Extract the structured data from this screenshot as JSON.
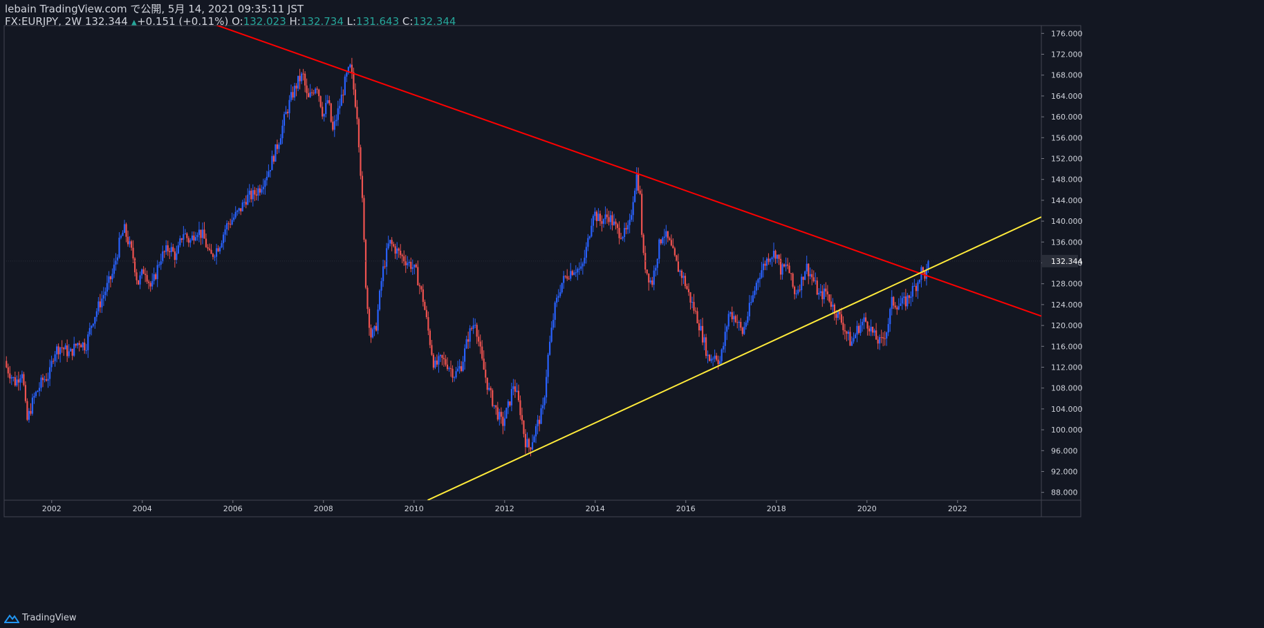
{
  "header": {
    "line1": "lebain TradingView.com で公開, 5月 14, 2021 09:35:11 JST",
    "symbol": "FX:EURJPY, 2W 132.344",
    "change": "+0.151 (+0.11%)",
    "o_label": "O:",
    "o_value": "132.023",
    "h_label": "H:",
    "h_value": "132.734",
    "l_label": "L:",
    "l_value": "131.643",
    "c_label": "C:",
    "c_value": "132.344"
  },
  "footer": {
    "brand": "TradingView",
    "logo_icon": "tradingview-logo-icon"
  },
  "colors": {
    "background": "#131722",
    "up": "#2962ff",
    "down": "#ef5350",
    "resistance": "#ff0000",
    "support": "#ffeb3b",
    "axis_text": "#d1d4dc",
    "price_label_bg": "#2a2e39"
  },
  "chart_data": {
    "type": "candlestick",
    "symbol": "FX:EURJPY",
    "interval": "2W",
    "x_range": [
      2000.95,
      2023.85
    ],
    "y_range": [
      86.5,
      177.5
    ],
    "x_ticks": [
      "2002",
      "2004",
      "2006",
      "2008",
      "2010",
      "2012",
      "2014",
      "2016",
      "2018",
      "2020",
      "2022"
    ],
    "y_ticks": [
      "88.000",
      "92.000",
      "96.000",
      "100.000",
      "104.000",
      "108.000",
      "112.000",
      "116.000",
      "120.000",
      "124.000",
      "128.000",
      "132.000",
      "136.000",
      "140.000",
      "144.000",
      "148.000",
      "152.000",
      "156.000",
      "160.000",
      "164.000",
      "168.000",
      "172.000",
      "176.000"
    ],
    "last_price": 132.344,
    "last_price_label": "132.344",
    "close_path": [
      [
        2001.0,
        112.0
      ],
      [
        2001.2,
        109.0
      ],
      [
        2001.35,
        111.5
      ],
      [
        2001.45,
        101.5
      ],
      [
        2001.6,
        106.0
      ],
      [
        2001.8,
        109.5
      ],
      [
        2001.95,
        110.5
      ],
      [
        2002.05,
        115.0
      ],
      [
        2002.2,
        116.0
      ],
      [
        2002.4,
        114.5
      ],
      [
        2002.6,
        117.0
      ],
      [
        2002.75,
        116.0
      ],
      [
        2002.9,
        121.0
      ],
      [
        2003.0,
        123.0
      ],
      [
        2003.2,
        127.0
      ],
      [
        2003.35,
        130.0
      ],
      [
        2003.5,
        136.0
      ],
      [
        2003.6,
        138.5
      ],
      [
        2003.8,
        133.0
      ],
      [
        2003.9,
        128.0
      ],
      [
        2004.05,
        131.0
      ],
      [
        2004.2,
        127.0
      ],
      [
        2004.4,
        133.0
      ],
      [
        2004.6,
        135.0
      ],
      [
        2004.75,
        133.0
      ],
      [
        2004.9,
        138.0
      ],
      [
        2005.05,
        136.0
      ],
      [
        2005.2,
        138.5
      ],
      [
        2005.35,
        137.0
      ],
      [
        2005.5,
        133.0
      ],
      [
        2005.7,
        135.5
      ],
      [
        2005.85,
        139.0
      ],
      [
        2006.0,
        140.5
      ],
      [
        2006.15,
        142.0
      ],
      [
        2006.3,
        144.5
      ],
      [
        2006.45,
        145.0
      ],
      [
        2006.6,
        146.5
      ],
      [
        2006.8,
        150.0
      ],
      [
        2007.0,
        155.0
      ],
      [
        2007.15,
        160.0
      ],
      [
        2007.3,
        164.0
      ],
      [
        2007.45,
        167.0
      ],
      [
        2007.55,
        168.0
      ],
      [
        2007.65,
        163.0
      ],
      [
        2007.85,
        166.5
      ],
      [
        2008.0,
        160.0
      ],
      [
        2008.1,
        163.5
      ],
      [
        2008.2,
        157.0
      ],
      [
        2008.35,
        162.0
      ],
      [
        2008.5,
        167.5
      ],
      [
        2008.6,
        169.5
      ],
      [
        2008.75,
        160.0
      ],
      [
        2008.85,
        145.0
      ],
      [
        2008.95,
        125.0
      ],
      [
        2009.05,
        118.0
      ],
      [
        2009.15,
        119.0
      ],
      [
        2009.3,
        130.0
      ],
      [
        2009.45,
        136.0
      ],
      [
        2009.6,
        134.5
      ],
      [
        2009.75,
        133.0
      ],
      [
        2009.95,
        131.5
      ],
      [
        2010.05,
        130.0
      ],
      [
        2010.2,
        125.0
      ],
      [
        2010.35,
        117.0
      ],
      [
        2010.45,
        112.0
      ],
      [
        2010.6,
        113.5
      ],
      [
        2010.75,
        112.5
      ],
      [
        2010.9,
        110.5
      ],
      [
        2011.05,
        112.5
      ],
      [
        2011.2,
        118.0
      ],
      [
        2011.35,
        121.0
      ],
      [
        2011.5,
        113.0
      ],
      [
        2011.65,
        107.5
      ],
      [
        2011.8,
        104.0
      ],
      [
        2011.95,
        101.0
      ],
      [
        2012.1,
        105.0
      ],
      [
        2012.2,
        109.0
      ],
      [
        2012.35,
        103.5
      ],
      [
        2012.45,
        98.0
      ],
      [
        2012.55,
        96.5
      ],
      [
        2012.7,
        100.5
      ],
      [
        2012.85,
        104.0
      ],
      [
        2012.95,
        113.5
      ],
      [
        2013.1,
        123.0
      ],
      [
        2013.25,
        128.0
      ],
      [
        2013.4,
        130.0
      ],
      [
        2013.55,
        131.0
      ],
      [
        2013.7,
        130.5
      ],
      [
        2013.85,
        136.5
      ],
      [
        2013.95,
        142.0
      ],
      [
        2014.1,
        140.0
      ],
      [
        2014.3,
        141.0
      ],
      [
        2014.5,
        138.0
      ],
      [
        2014.65,
        137.5
      ],
      [
        2014.75,
        138.5
      ],
      [
        2014.85,
        145.5
      ],
      [
        2014.92,
        149.0
      ],
      [
        2015.0,
        144.0
      ],
      [
        2015.05,
        133.5
      ],
      [
        2015.15,
        130.0
      ],
      [
        2015.25,
        128.0
      ],
      [
        2015.4,
        135.0
      ],
      [
        2015.5,
        138.0
      ],
      [
        2015.65,
        135.5
      ],
      [
        2015.8,
        131.5
      ],
      [
        2015.95,
        129.0
      ],
      [
        2016.1,
        125.0
      ],
      [
        2016.25,
        121.5
      ],
      [
        2016.4,
        117.0
      ],
      [
        2016.5,
        113.5
      ],
      [
        2016.65,
        114.5
      ],
      [
        2016.75,
        113.0
      ],
      [
        2016.85,
        117.0
      ],
      [
        2016.95,
        122.5
      ],
      [
        2017.1,
        121.5
      ],
      [
        2017.25,
        118.5
      ],
      [
        2017.35,
        121.5
      ],
      [
        2017.45,
        124.5
      ],
      [
        2017.6,
        129.5
      ],
      [
        2017.75,
        132.0
      ],
      [
        2017.85,
        133.5
      ],
      [
        2018.0,
        134.0
      ],
      [
        2018.1,
        130.5
      ],
      [
        2018.25,
        131.5
      ],
      [
        2018.4,
        126.0
      ],
      [
        2018.55,
        128.5
      ],
      [
        2018.65,
        131.5
      ],
      [
        2018.8,
        129.0
      ],
      [
        2018.95,
        125.5
      ],
      [
        2019.1,
        126.5
      ],
      [
        2019.25,
        123.5
      ],
      [
        2019.4,
        121.5
      ],
      [
        2019.55,
        118.5
      ],
      [
        2019.65,
        116.5
      ],
      [
        2019.8,
        119.5
      ],
      [
        2019.95,
        121.0
      ],
      [
        2020.05,
        120.0
      ],
      [
        2020.15,
        118.0
      ],
      [
        2020.3,
        116.5
      ],
      [
        2020.45,
        119.5
      ],
      [
        2020.55,
        124.5
      ],
      [
        2020.7,
        124.0
      ],
      [
        2020.85,
        124.5
      ],
      [
        2020.95,
        126.0
      ],
      [
        2021.1,
        128.0
      ],
      [
        2021.2,
        130.5
      ],
      [
        2021.3,
        129.5
      ],
      [
        2021.37,
        132.344
      ]
    ],
    "trendlines": [
      {
        "name": "resistance",
        "color": "#ff0000",
        "points": [
          [
            2005.6,
            177.7
          ],
          [
            2023.85,
            121.8
          ]
        ]
      },
      {
        "name": "support",
        "color": "#ffeb3b",
        "points": [
          [
            2010.3,
            86.5
          ],
          [
            2023.85,
            140.8
          ]
        ]
      }
    ]
  }
}
